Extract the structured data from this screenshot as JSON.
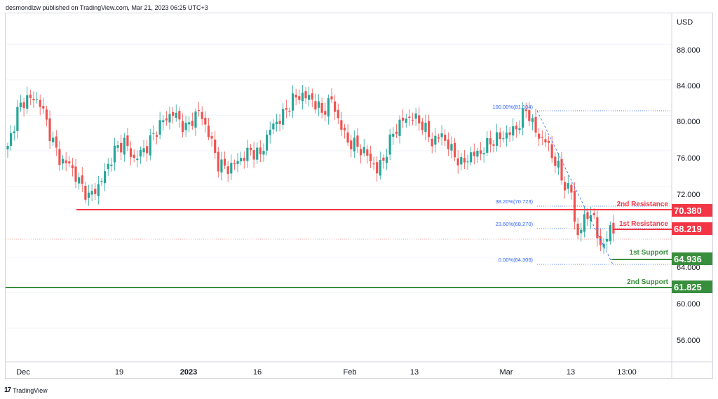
{
  "header": {
    "published_text": "desmondlzw published on TradingView.com, Mar 21, 2023 06:25 UTC+3"
  },
  "footer": {
    "brand": "TradingView",
    "logo_glyph": "17"
  },
  "axis": {
    "currency": "USD",
    "y_ticks": [
      "88.000",
      "84.000",
      "80.000",
      "76.000",
      "72.000",
      "64.000",
      "60.000",
      "56.000"
    ],
    "x_ticks": [
      "Dec",
      "19",
      "2023",
      "16",
      "Feb",
      "13",
      "Mar",
      "13",
      "13:00"
    ]
  },
  "colors": {
    "up": "#26a69a",
    "down": "#ef5350",
    "resistance": "#f23645",
    "support": "#388e3c",
    "fib": "#2962ff",
    "grid": "#f0f3fa"
  },
  "levels": {
    "resistance_2": {
      "label": "2nd Resistance",
      "value": "70.380"
    },
    "resistance_1": {
      "label": "1st Resistance",
      "value": "68.219"
    },
    "support_1": {
      "label": "1st Support",
      "value": "64.936"
    },
    "support_2": {
      "label": "2nd Support",
      "value": "61.825"
    }
  },
  "fib_labels": [
    "100.00%(81.104)",
    "38.20%(70.723)",
    "23.60%(68.270)",
    "0.00%(64.306)"
  ],
  "chart_data": {
    "type": "candlestick",
    "ylim": [
      52.2,
      91.5
    ],
    "currency": "USD",
    "x_tick_labels": [
      "Dec",
      "19",
      "2023",
      "16",
      "Feb",
      "13",
      "Mar",
      "13",
      "13:00"
    ],
    "close_path": [
      {
        "x": 0,
        "close": 76.2
      },
      {
        "x": 3,
        "close": 80.5
      },
      {
        "x": 6,
        "close": 82.0
      },
      {
        "x": 10,
        "close": 81.5
      },
      {
        "x": 13,
        "close": 78.0
      },
      {
        "x": 16,
        "close": 75.0
      },
      {
        "x": 19,
        "close": 74.5
      },
      {
        "x": 22,
        "close": 72.5
      },
      {
        "x": 25,
        "close": 70.8
      },
      {
        "x": 28,
        "close": 72.0
      },
      {
        "x": 30,
        "close": 73.5
      },
      {
        "x": 33,
        "close": 76.0
      },
      {
        "x": 36,
        "close": 77.0
      },
      {
        "x": 39,
        "close": 75.0
      },
      {
        "x": 43,
        "close": 76.5
      },
      {
        "x": 47,
        "close": 79.0
      },
      {
        "x": 51,
        "close": 80.3
      },
      {
        "x": 55,
        "close": 78.5
      },
      {
        "x": 59,
        "close": 80.5
      },
      {
        "x": 62,
        "close": 78.0
      },
      {
        "x": 65,
        "close": 74.5
      },
      {
        "x": 68,
        "close": 74.0
      },
      {
        "x": 71,
        "close": 74.8
      },
      {
        "x": 75,
        "close": 76.0
      },
      {
        "x": 78,
        "close": 75.5
      },
      {
        "x": 81,
        "close": 78.5
      },
      {
        "x": 85,
        "close": 80.0
      },
      {
        "x": 88,
        "close": 81.8
      },
      {
        "x": 91,
        "close": 82.3
      },
      {
        "x": 94,
        "close": 81.8
      },
      {
        "x": 97,
        "close": 80.3
      },
      {
        "x": 100,
        "close": 81.8
      },
      {
        "x": 102,
        "close": 79.5
      },
      {
        "x": 105,
        "close": 77.0
      },
      {
        "x": 108,
        "close": 76.5
      },
      {
        "x": 111,
        "close": 75.5
      },
      {
        "x": 114,
        "close": 73.8
      },
      {
        "x": 116,
        "close": 75.0
      },
      {
        "x": 119,
        "close": 78.0
      },
      {
        "x": 122,
        "close": 79.5
      },
      {
        "x": 125,
        "close": 79.8
      },
      {
        "x": 128,
        "close": 79.0
      },
      {
        "x": 131,
        "close": 77.0
      },
      {
        "x": 134,
        "close": 77.8
      },
      {
        "x": 137,
        "close": 76.0
      },
      {
        "x": 140,
        "close": 74.5
      },
      {
        "x": 143,
        "close": 75.5
      },
      {
        "x": 146,
        "close": 75.8
      },
      {
        "x": 149,
        "close": 77.0
      },
      {
        "x": 152,
        "close": 77.5
      },
      {
        "x": 155,
        "close": 78.0
      },
      {
        "x": 158,
        "close": 79.0
      },
      {
        "x": 160,
        "close": 80.8
      },
      {
        "x": 162,
        "close": 79.0
      },
      {
        "x": 164,
        "close": 77.5
      },
      {
        "x": 166,
        "close": 77.2
      },
      {
        "x": 168,
        "close": 75.5
      },
      {
        "x": 170,
        "close": 74.0
      },
      {
        "x": 172,
        "close": 72.0
      },
      {
        "x": 174,
        "close": 71.5
      },
      {
        "x": 175,
        "close": 68.0
      },
      {
        "x": 176,
        "close": 66.5
      },
      {
        "x": 178,
        "close": 68.2
      },
      {
        "x": 180,
        "close": 69.2
      },
      {
        "x": 182,
        "close": 66.5
      },
      {
        "x": 184,
        "close": 65.0
      },
      {
        "x": 186,
        "close": 67.5
      },
      {
        "x": 187,
        "close": 66.8
      }
    ]
  }
}
